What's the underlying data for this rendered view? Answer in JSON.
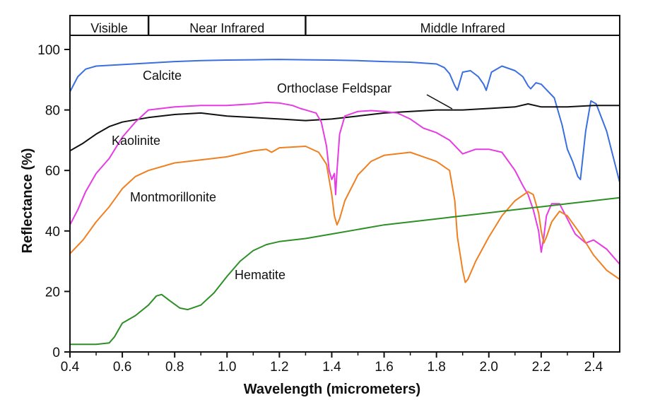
{
  "chart_data": {
    "type": "line",
    "xlabel": "Wavelength (micrometers)",
    "ylabel": "Reflectance (%)",
    "xlim": [
      0.4,
      2.5
    ],
    "ylim": [
      0,
      100
    ],
    "xticks": [
      "0.4",
      "0.6",
      "0.8",
      "1.0",
      "1.2",
      "1.4",
      "1.6",
      "1.8",
      "2.0",
      "2.2",
      "2.4"
    ],
    "yticks": [
      "0",
      "20",
      "40",
      "60",
      "80",
      "100"
    ],
    "grid": false,
    "regions": [
      {
        "label": "Visible",
        "start": 0.4,
        "end": 0.7
      },
      {
        "label": "Near Infrared",
        "start": 0.7,
        "end": 1.3
      },
      {
        "label": "Middle Infrared",
        "start": 1.3,
        "end": 2.5
      }
    ],
    "series": [
      {
        "name": "Calcite",
        "color": "#3a6fe0",
        "x": [
          0.4,
          0.43,
          0.46,
          0.5,
          0.6,
          0.7,
          0.8,
          0.9,
          1.0,
          1.1,
          1.2,
          1.3,
          1.4,
          1.5,
          1.6,
          1.7,
          1.75,
          1.8,
          1.83,
          1.85,
          1.87,
          1.88,
          1.9,
          1.93,
          1.96,
          1.98,
          1.99,
          2.01,
          2.05,
          2.1,
          2.13,
          2.15,
          2.16,
          2.18,
          2.2,
          2.25,
          2.28,
          2.3,
          2.32,
          2.34,
          2.35,
          2.37,
          2.39,
          2.41,
          2.45,
          2.5
        ],
        "y": [
          86,
          91,
          93.5,
          94.5,
          95,
          95.5,
          96,
          96.3,
          96.5,
          96.6,
          96.7,
          96.6,
          96.5,
          96.3,
          96,
          95.8,
          95.5,
          95.2,
          94,
          92,
          88,
          86.5,
          92.5,
          93,
          91,
          88.5,
          86.5,
          92.5,
          94.5,
          93,
          91,
          88,
          87,
          89,
          88.5,
          84,
          75,
          67,
          63,
          58,
          57,
          73,
          83,
          82,
          73,
          56
        ]
      },
      {
        "name": "Orthoclase Feldspar",
        "color": "#111111",
        "x": [
          0.4,
          0.45,
          0.5,
          0.55,
          0.6,
          0.7,
          0.8,
          0.9,
          1.0,
          1.1,
          1.2,
          1.3,
          1.4,
          1.5,
          1.6,
          1.7,
          1.8,
          1.9,
          2.0,
          2.1,
          2.15,
          2.2,
          2.3,
          2.4,
          2.5
        ],
        "y": [
          66.5,
          69,
          72,
          74.5,
          76,
          77.5,
          78.5,
          79,
          78,
          77.5,
          77,
          76.5,
          77,
          78,
          79,
          79.5,
          80,
          80,
          80.5,
          81,
          82,
          81,
          81,
          81.5,
          81.5
        ]
      },
      {
        "name": "Kaolinite",
        "color": "#e63be3",
        "x": [
          0.4,
          0.43,
          0.46,
          0.5,
          0.55,
          0.6,
          0.65,
          0.7,
          0.8,
          0.9,
          1.0,
          1.1,
          1.15,
          1.2,
          1.25,
          1.28,
          1.3,
          1.34,
          1.36,
          1.38,
          1.39,
          1.4,
          1.41,
          1.415,
          1.42,
          1.43,
          1.45,
          1.5,
          1.55,
          1.6,
          1.65,
          1.7,
          1.75,
          1.8,
          1.85,
          1.9,
          1.95,
          2.0,
          2.05,
          2.1,
          2.13,
          2.15,
          2.17,
          2.19,
          2.2,
          2.21,
          2.22,
          2.24,
          2.27,
          2.3,
          2.33,
          2.37,
          2.4,
          2.45,
          2.5
        ],
        "y": [
          42,
          47,
          53,
          59,
          64,
          71,
          76,
          80,
          81,
          81.5,
          81.5,
          82,
          82.5,
          82.3,
          81.5,
          80.5,
          80,
          79,
          76,
          68,
          60,
          57,
          59,
          52,
          60,
          72,
          78,
          79.5,
          79.8,
          79.5,
          79,
          77,
          74,
          72.5,
          70,
          65.5,
          67,
          67,
          66,
          60,
          55,
          52,
          47,
          40,
          33,
          38,
          45,
          49,
          49,
          44,
          39,
          36,
          37,
          34,
          29
        ]
      },
      {
        "name": "Montmorillonite",
        "color": "#f07f1f",
        "x": [
          0.4,
          0.45,
          0.5,
          0.55,
          0.6,
          0.65,
          0.7,
          0.8,
          0.9,
          1.0,
          1.1,
          1.15,
          1.17,
          1.2,
          1.3,
          1.35,
          1.38,
          1.4,
          1.41,
          1.42,
          1.43,
          1.45,
          1.5,
          1.55,
          1.6,
          1.7,
          1.75,
          1.8,
          1.85,
          1.87,
          1.88,
          1.9,
          1.91,
          1.92,
          1.95,
          2.0,
          2.05,
          2.1,
          2.15,
          2.17,
          2.19,
          2.2,
          2.21,
          2.22,
          2.24,
          2.27,
          2.3,
          2.35,
          2.4,
          2.45,
          2.5
        ],
        "y": [
          32.5,
          37,
          43,
          48,
          54,
          58,
          60,
          62.5,
          63.5,
          64.5,
          66.5,
          67,
          66,
          67.5,
          68,
          66,
          62,
          52,
          45,
          42,
          44,
          50,
          58.5,
          63,
          65,
          66,
          64.5,
          63,
          60,
          50,
          38,
          27,
          23,
          24,
          30,
          38,
          45,
          50,
          53,
          52,
          46,
          40,
          36,
          38,
          43,
          46.5,
          45,
          39,
          32,
          27,
          24
        ]
      },
      {
        "name": "Hematite",
        "color": "#2e8f27",
        "x": [
          0.4,
          0.45,
          0.5,
          0.55,
          0.57,
          0.6,
          0.65,
          0.7,
          0.73,
          0.75,
          0.78,
          0.82,
          0.85,
          0.9,
          0.95,
          1.0,
          1.05,
          1.1,
          1.15,
          1.2,
          1.3,
          1.4,
          1.5,
          1.6,
          1.7,
          1.8,
          1.9,
          2.0,
          2.1,
          2.2,
          2.3,
          2.4,
          2.5
        ],
        "y": [
          2.5,
          2.5,
          2.5,
          3,
          5,
          9.5,
          12,
          15.5,
          18.5,
          19,
          17,
          14.5,
          14,
          15.5,
          19.5,
          25,
          30,
          33.5,
          35.5,
          36.5,
          37.5,
          39,
          40.5,
          42,
          43,
          44,
          45,
          46,
          47,
          48,
          49,
          50,
          51
        ]
      }
    ],
    "annotations": [
      {
        "text": "Calcite",
        "series": "Calcite"
      },
      {
        "text": "Orthoclase Feldspar",
        "series": "Orthoclase Feldspar"
      },
      {
        "text": "Kaolinite",
        "series": "Kaolinite"
      },
      {
        "text": "Montmorillonite",
        "series": "Montmorillonite"
      },
      {
        "text": "Hematite",
        "series": "Hematite"
      }
    ]
  }
}
